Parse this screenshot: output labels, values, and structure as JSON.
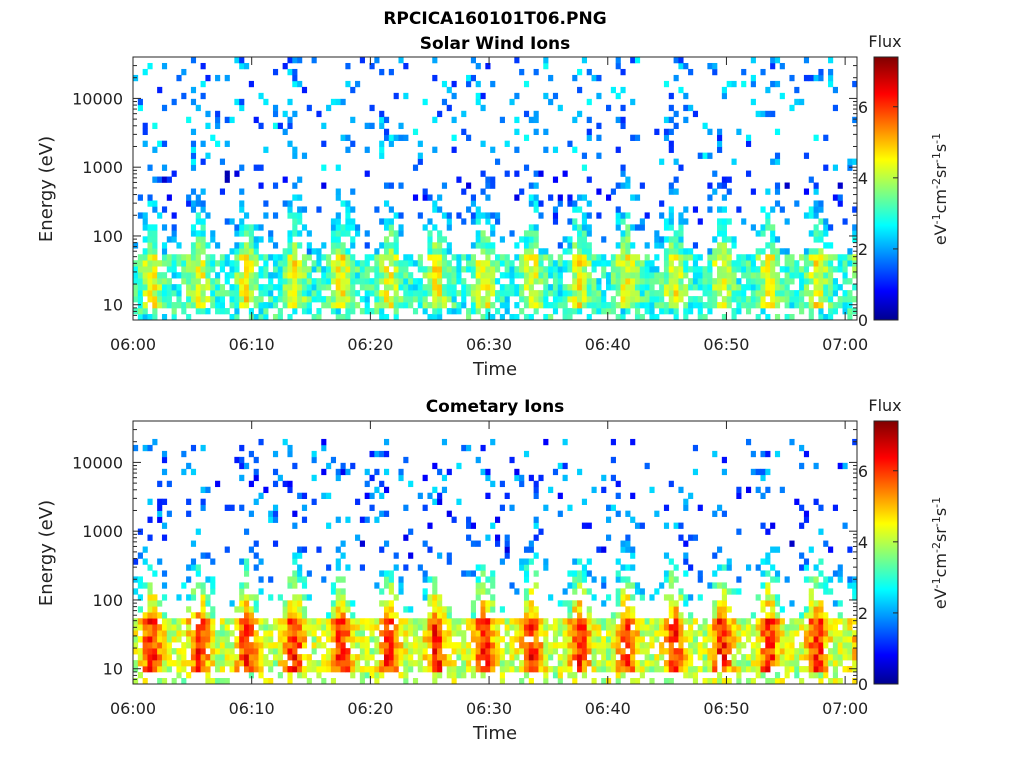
{
  "figure": {
    "title": "RPCICA160101T06.PNG"
  },
  "chart_data": [
    {
      "type": "heatmap",
      "title": "Solar Wind Ions",
      "xlabel": "Time",
      "ylabel": "Energy (eV)",
      "x_ticks": [
        "06:00",
        "06:10",
        "06:20",
        "06:30",
        "06:40",
        "06:50",
        "07:00"
      ],
      "x_range": [
        "06:00",
        "07:01"
      ],
      "y_scale": "log",
      "y_ticks": [
        "10",
        "100",
        "1000",
        "10000"
      ],
      "y_range": [
        6,
        40000
      ],
      "colorbar": {
        "label": "Flux",
        "unit": "eV-1cm-2sr-1s-1",
        "ticks": [
          "0",
          "2",
          "4",
          "6"
        ],
        "range": [
          0,
          7.4
        ],
        "colormap": "jet"
      },
      "pattern": {
        "pulses": 15,
        "core_energy_range": [
          8,
          45
        ],
        "core_level": 4.3,
        "tail_max_energy": 800,
        "scatter_max_energy": 40000,
        "scatter_level": 2.0
      }
    },
    {
      "type": "heatmap",
      "title": "Cometary Ions",
      "xlabel": "Time",
      "ylabel": "Energy (eV)",
      "x_ticks": [
        "06:00",
        "06:10",
        "06:20",
        "06:30",
        "06:40",
        "06:50",
        "07:00"
      ],
      "x_range": [
        "06:00",
        "07:01"
      ],
      "y_scale": "log",
      "y_ticks": [
        "10",
        "100",
        "1000",
        "10000"
      ],
      "y_range": [
        6,
        40000
      ],
      "colorbar": {
        "label": "Flux",
        "unit": "eV-1cm-2sr-1s-1",
        "ticks": [
          "0",
          "2",
          "4",
          "6"
        ],
        "range": [
          0,
          7.4
        ],
        "colormap": "jet"
      },
      "pattern": {
        "pulses": 15,
        "core_energy_range": [
          8,
          45
        ],
        "core_level": 5.9,
        "tail_max_energy": 600,
        "scatter_max_energy": 20000,
        "scatter_level": 1.7
      }
    }
  ]
}
